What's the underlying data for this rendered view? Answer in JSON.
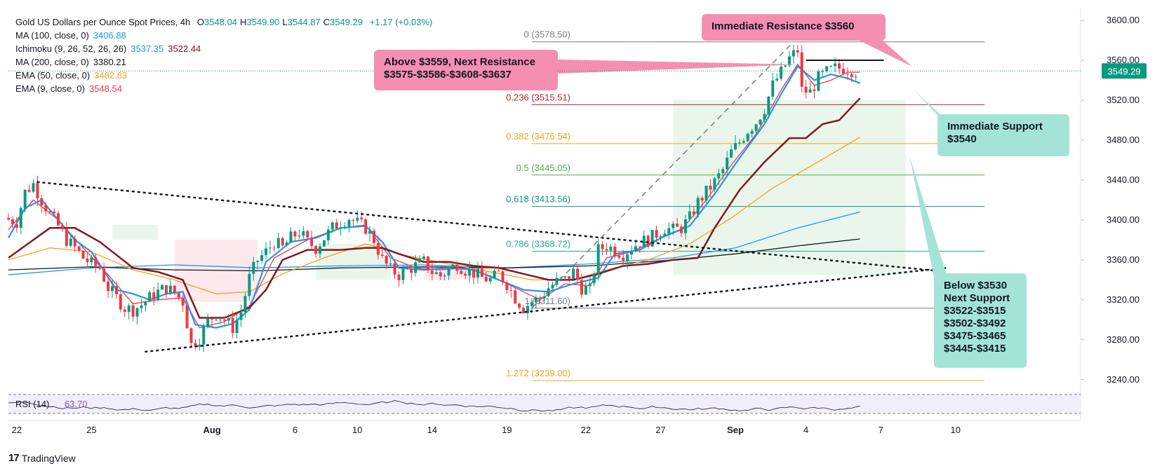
{
  "header": {
    "title": "Gold US Dollars per Ounce Spot Prices, 4h",
    "ohlc": [
      {
        "k": "O",
        "v": "3548.04"
      },
      {
        "k": "H",
        "v": "3549.90"
      },
      {
        "k": "L",
        "v": "3544.87"
      },
      {
        "k": "C",
        "v": "3549.29"
      }
    ],
    "change": "+1.17 (+0.03%)"
  },
  "indicators": [
    {
      "label": "MA (100, close, 0)",
      "values": [
        "3406.88"
      ],
      "colors": [
        "#2196f3"
      ]
    },
    {
      "label": "Ichimoku (9, 26, 52, 26, 26)",
      "values": [
        "3537.35",
        "3522.44"
      ],
      "colors": [
        "#2196f3",
        "#801922"
      ]
    },
    {
      "label": "MA (200, close, 0)",
      "values": [
        "3380.21"
      ],
      "colors": [
        "#131722"
      ]
    },
    {
      "label": "EMA (50, close, 0)",
      "values": [
        "3482.83"
      ],
      "colors": [
        "#f7a21b"
      ]
    },
    {
      "label": "EMA (9, close, 0)",
      "values": [
        "3548.54"
      ],
      "colors": [
        "#f23645"
      ]
    }
  ],
  "callouts": {
    "resistance": "Immediate Resistance $3560",
    "above_line1": "Above $3559, Next Resistance",
    "above_line2": "$3575-$3586-$3608-$3637",
    "support_line1": "Immediate Support",
    "support_line2": "$3540",
    "below_lines": [
      "Below $3530",
      "Next Support",
      "$3522-$3515",
      "$3502-$3492",
      "$3475-$3465",
      "$3445-$3415"
    ]
  },
  "footer": {
    "brand": "TradingView",
    "logo": "17"
  },
  "colors": {
    "up": "#089981",
    "down": "#f23645",
    "ichi_base": "#801922",
    "ichi_conv": "#2196f3"
  },
  "chart_data": {
    "type": "candlestick",
    "instrument": "Gold US Dollars per Ounce Spot Prices",
    "timeframe": "4h",
    "ylim": [
      3230,
      3612
    ],
    "y_ticks": [
      3240,
      3280,
      3320,
      3360,
      3400,
      3440,
      3480,
      3520,
      3560,
      3600
    ],
    "x_ticks": [
      {
        "label": "22",
        "idx": 2
      },
      {
        "label": "25",
        "idx": 20
      },
      {
        "label": "Aug",
        "idx": 49
      },
      {
        "label": "6",
        "idx": 69
      },
      {
        "label": "10",
        "idx": 84
      },
      {
        "label": "14",
        "idx": 102
      },
      {
        "label": "19",
        "idx": 120
      },
      {
        "label": "22",
        "idx": 139
      },
      {
        "label": "27",
        "idx": 157
      },
      {
        "label": "Sep",
        "idx": 175
      },
      {
        "label": "4",
        "idx": 192
      },
      {
        "label": "7",
        "idx": 210
      },
      {
        "label": "10",
        "idx": 228
      }
    ],
    "x_range": [
      0,
      243
    ],
    "last_price": "3549.29",
    "fib_levels": [
      {
        "label": "0 (3578.50)",
        "value": 3578.5,
        "color": "#787b86"
      },
      {
        "label": "0.236 (3515.51)",
        "value": 3515.51,
        "color": "#b22833"
      },
      {
        "label": "0.382 (3476.54)",
        "value": 3476.54,
        "color": "#f7a21b"
      },
      {
        "label": "0.5 (3445.05)",
        "value": 3445.05,
        "color": "#4caf50"
      },
      {
        "label": "0.618 (3413.56)",
        "value": 3413.56,
        "color": "#089981"
      },
      {
        "label": "0.786 (3368.72)",
        "value": 3368.72,
        "color": "#22ab94"
      },
      {
        "label": "1 (3311.60)",
        "value": 3311.6,
        "color": "#787b86"
      },
      {
        "label": "1.272 (3239.00)",
        "value": 3239.0,
        "color": "#f7a21b"
      }
    ],
    "resistance_line": {
      "value": 3560,
      "from": 192,
      "to": 206
    },
    "close_path": [
      [
        0,
        3402
      ],
      [
        3,
        3398
      ],
      [
        5,
        3428
      ],
      [
        7,
        3436
      ],
      [
        9,
        3420
      ],
      [
        11,
        3406
      ],
      [
        13,
        3394
      ],
      [
        15,
        3380
      ],
      [
        17,
        3372
      ],
      [
        19,
        3362
      ],
      [
        21,
        3356
      ],
      [
        23,
        3352
      ],
      [
        25,
        3332
      ],
      [
        27,
        3322
      ],
      [
        29,
        3312
      ],
      [
        31,
        3310
      ],
      [
        33,
        3315
      ],
      [
        35,
        3322
      ],
      [
        37,
        3328
      ],
      [
        39,
        3332
      ],
      [
        41,
        3327
      ],
      [
        43,
        3318
      ],
      [
        45,
        3275
      ],
      [
        47,
        3282
      ],
      [
        49,
        3298
      ],
      [
        51,
        3306
      ],
      [
        53,
        3300
      ],
      [
        55,
        3292
      ],
      [
        57,
        3308
      ],
      [
        59,
        3342
      ],
      [
        61,
        3360
      ],
      [
        63,
        3368
      ],
      [
        65,
        3378
      ],
      [
        67,
        3372
      ],
      [
        69,
        3382
      ],
      [
        71,
        3388
      ],
      [
        73,
        3378
      ],
      [
        75,
        3372
      ],
      [
        77,
        3382
      ],
      [
        79,
        3392
      ],
      [
        81,
        3398
      ],
      [
        83,
        3402
      ],
      [
        85,
        3397
      ],
      [
        87,
        3392
      ],
      [
        89,
        3380
      ],
      [
        91,
        3360
      ],
      [
        93,
        3350
      ],
      [
        95,
        3345
      ],
      [
        97,
        3350
      ],
      [
        99,
        3354
      ],
      [
        101,
        3358
      ],
      [
        103,
        3348
      ],
      [
        105,
        3344
      ],
      [
        107,
        3350
      ],
      [
        109,
        3356
      ],
      [
        111,
        3350
      ],
      [
        113,
        3347
      ],
      [
        115,
        3342
      ],
      [
        117,
        3340
      ],
      [
        119,
        3346
      ],
      [
        121,
        3336
      ],
      [
        123,
        3322
      ],
      [
        125,
        3312
      ],
      [
        127,
        3318
      ],
      [
        129,
        3322
      ],
      [
        131,
        3332
      ],
      [
        133,
        3338
      ],
      [
        135,
        3340
      ],
      [
        137,
        3348
      ],
      [
        139,
        3332
      ],
      [
        141,
        3330
      ],
      [
        143,
        3370
      ],
      [
        145,
        3374
      ],
      [
        147,
        3370
      ],
      [
        149,
        3366
      ],
      [
        151,
        3372
      ],
      [
        153,
        3378
      ],
      [
        155,
        3380
      ],
      [
        157,
        3386
      ],
      [
        159,
        3392
      ],
      [
        161,
        3390
      ],
      [
        163,
        3392
      ],
      [
        165,
        3402
      ],
      [
        167,
        3418
      ],
      [
        169,
        3428
      ],
      [
        171,
        3438
      ],
      [
        173,
        3450
      ],
      [
        175,
        3468
      ],
      [
        177,
        3478
      ],
      [
        179,
        3490
      ],
      [
        181,
        3498
      ],
      [
        183,
        3512
      ],
      [
        185,
        3535
      ],
      [
        187,
        3548
      ],
      [
        189,
        3562
      ],
      [
        191,
        3570
      ],
      [
        192,
        3530
      ],
      [
        194,
        3528
      ],
      [
        196,
        3542
      ],
      [
        198,
        3548
      ],
      [
        200,
        3552
      ],
      [
        202,
        3552
      ],
      [
        204,
        3550
      ],
      [
        205,
        3549
      ]
    ],
    "series": [
      {
        "name": "MA (100, close, 0)",
        "color": "#2196f3",
        "points": [
          [
            0,
            3345
          ],
          [
            20,
            3352
          ],
          [
            40,
            3355
          ],
          [
            60,
            3352
          ],
          [
            80,
            3354
          ],
          [
            100,
            3355
          ],
          [
            120,
            3352
          ],
          [
            140,
            3356
          ],
          [
            160,
            3362
          ],
          [
            175,
            3372
          ],
          [
            190,
            3392
          ],
          [
            205,
            3408
          ]
        ]
      },
      {
        "name": "MA (200, close, 0)",
        "color": "#131722",
        "points": [
          [
            0,
            3350
          ],
          [
            20,
            3353
          ],
          [
            40,
            3350
          ],
          [
            60,
            3349
          ],
          [
            80,
            3352
          ],
          [
            100,
            3353
          ],
          [
            120,
            3352
          ],
          [
            140,
            3354
          ],
          [
            160,
            3360
          ],
          [
            175,
            3366
          ],
          [
            190,
            3374
          ],
          [
            205,
            3381
          ]
        ]
      },
      {
        "name": "EMA (50, close, 0)",
        "color": "#f7a21b",
        "points": [
          [
            0,
            3360
          ],
          [
            10,
            3372
          ],
          [
            20,
            3368
          ],
          [
            30,
            3350
          ],
          [
            40,
            3340
          ],
          [
            50,
            3326
          ],
          [
            58,
            3328
          ],
          [
            66,
            3346
          ],
          [
            76,
            3362
          ],
          [
            86,
            3376
          ],
          [
            96,
            3364
          ],
          [
            106,
            3356
          ],
          [
            116,
            3348
          ],
          [
            126,
            3340
          ],
          [
            136,
            3340
          ],
          [
            144,
            3350
          ],
          [
            154,
            3360
          ],
          [
            164,
            3376
          ],
          [
            174,
            3402
          ],
          [
            184,
            3432
          ],
          [
            194,
            3456
          ],
          [
            205,
            3483
          ]
        ]
      },
      {
        "name": "EMA (9, close, 0)",
        "color": "#f23645",
        "points": [
          [
            0,
            3390
          ],
          [
            6,
            3420
          ],
          [
            12,
            3400
          ],
          [
            18,
            3372
          ],
          [
            24,
            3345
          ],
          [
            30,
            3316
          ],
          [
            36,
            3320
          ],
          [
            42,
            3322
          ],
          [
            46,
            3292
          ],
          [
            52,
            3298
          ],
          [
            58,
            3314
          ],
          [
            64,
            3362
          ],
          [
            72,
            3380
          ],
          [
            80,
            3392
          ],
          [
            86,
            3395
          ],
          [
            92,
            3362
          ],
          [
            98,
            3352
          ],
          [
            104,
            3350
          ],
          [
            110,
            3352
          ],
          [
            116,
            3344
          ],
          [
            122,
            3332
          ],
          [
            128,
            3320
          ],
          [
            134,
            3336
          ],
          [
            140,
            3334
          ],
          [
            144,
            3362
          ],
          [
            150,
            3368
          ],
          [
            156,
            3380
          ],
          [
            162,
            3390
          ],
          [
            168,
            3420
          ],
          [
            174,
            3455
          ],
          [
            180,
            3486
          ],
          [
            186,
            3530
          ],
          [
            190,
            3556
          ],
          [
            194,
            3535
          ],
          [
            198,
            3540
          ],
          [
            202,
            3548
          ],
          [
            205,
            3548
          ]
        ]
      },
      {
        "name": "Ichimoku Conversion (9)",
        "color": "#2196f3",
        "points": [
          [
            0,
            3382
          ],
          [
            4,
            3412
          ],
          [
            8,
            3420
          ],
          [
            12,
            3400
          ],
          [
            16,
            3380
          ],
          [
            20,
            3368
          ],
          [
            26,
            3330
          ],
          [
            30,
            3326
          ],
          [
            34,
            3320
          ],
          [
            38,
            3326
          ],
          [
            42,
            3328
          ],
          [
            45,
            3295
          ],
          [
            50,
            3292
          ],
          [
            54,
            3296
          ],
          [
            58,
            3310
          ],
          [
            62,
            3358
          ],
          [
            68,
            3378
          ],
          [
            74,
            3382
          ],
          [
            80,
            3392
          ],
          [
            86,
            3394
          ],
          [
            90,
            3378
          ],
          [
            94,
            3352
          ],
          [
            100,
            3350
          ],
          [
            106,
            3352
          ],
          [
            112,
            3350
          ],
          [
            118,
            3340
          ],
          [
            124,
            3330
          ],
          [
            130,
            3328
          ],
          [
            136,
            3336
          ],
          [
            142,
            3342
          ],
          [
            146,
            3366
          ],
          [
            152,
            3370
          ],
          [
            158,
            3384
          ],
          [
            164,
            3394
          ],
          [
            170,
            3426
          ],
          [
            176,
            3462
          ],
          [
            182,
            3496
          ],
          [
            186,
            3526
          ],
          [
            190,
            3554
          ],
          [
            194,
            3540
          ],
          [
            198,
            3546
          ],
          [
            202,
            3542
          ],
          [
            205,
            3537
          ]
        ]
      },
      {
        "name": "Ichimoku Base (26)",
        "color": "#801922",
        "points": [
          [
            0,
            3362
          ],
          [
            4,
            3374
          ],
          [
            10,
            3392
          ],
          [
            16,
            3392
          ],
          [
            22,
            3378
          ],
          [
            30,
            3352
          ],
          [
            36,
            3348
          ],
          [
            42,
            3340
          ],
          [
            46,
            3302
          ],
          [
            52,
            3302
          ],
          [
            58,
            3312
          ],
          [
            62,
            3330
          ],
          [
            66,
            3360
          ],
          [
            72,
            3370
          ],
          [
            80,
            3370
          ],
          [
            86,
            3372
          ],
          [
            90,
            3372
          ],
          [
            94,
            3366
          ],
          [
            100,
            3358
          ],
          [
            106,
            3358
          ],
          [
            112,
            3354
          ],
          [
            118,
            3352
          ],
          [
            124,
            3346
          ],
          [
            130,
            3340
          ],
          [
            136,
            3340
          ],
          [
            142,
            3346
          ],
          [
            148,
            3354
          ],
          [
            154,
            3356
          ],
          [
            160,
            3360
          ],
          [
            166,
            3362
          ],
          [
            170,
            3392
          ],
          [
            176,
            3430
          ],
          [
            182,
            3458
          ],
          [
            188,
            3482
          ],
          [
            192,
            3482
          ],
          [
            196,
            3496
          ],
          [
            200,
            3500
          ],
          [
            205,
            3522
          ]
        ]
      }
    ],
    "ichimoku_cloud": [
      {
        "from": 25,
        "to": 36,
        "top": 3395,
        "bottom": 3380,
        "color": "#e8f5e9"
      },
      {
        "from": 40,
        "to": 60,
        "top": 3380,
        "bottom": 3318,
        "color": "#fde7ea"
      },
      {
        "from": 74,
        "to": 92,
        "top": 3376,
        "bottom": 3340,
        "color": "#e8f5e9"
      },
      {
        "from": 100,
        "to": 118,
        "top": 3354,
        "bottom": 3340,
        "color": "#fde7ea"
      },
      {
        "from": 160,
        "to": 216,
        "top": 3520,
        "bottom": 3345,
        "color": "#e8f5e9"
      }
    ],
    "triangle": {
      "upper": [
        [
          7,
          3438
        ],
        [
          226,
          3348
        ]
      ],
      "lower": [
        [
          33,
          3268
        ],
        [
          226,
          3352
        ]
      ]
    },
    "fib_anchor": [
      [
        126,
        3311.6
      ],
      [
        189,
        3578.5
      ]
    ],
    "rsi": {
      "label": "RSI (14)",
      "value": "63.70",
      "upper": 70,
      "lower": 30
    }
  }
}
